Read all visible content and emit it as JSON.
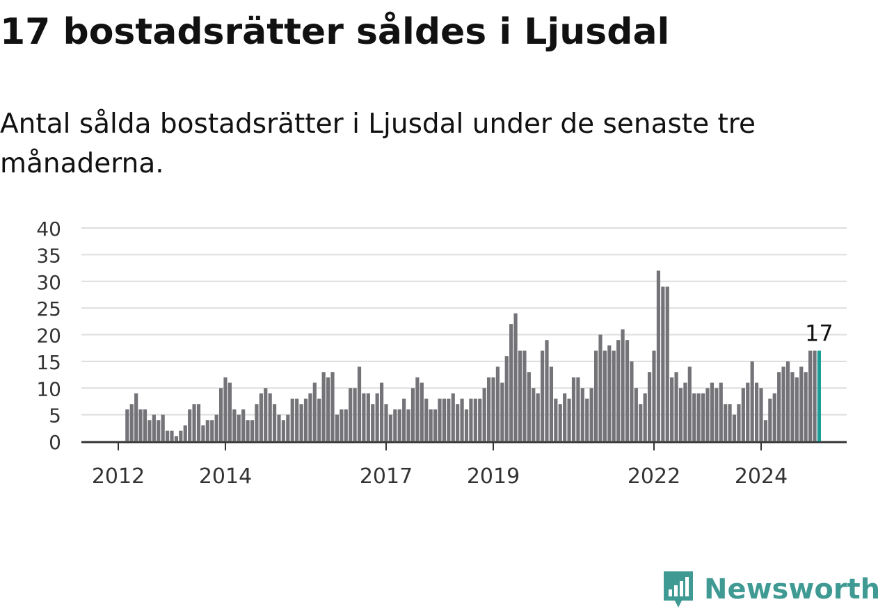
{
  "header": {
    "title": "17 bostadsrätter såldes i Ljusdal",
    "subtitle": "Antal sålda bostadsrätter i Ljusdal under de senaste tre månaderna."
  },
  "brand": {
    "name": "Newsworthy",
    "color": "#3f9a93"
  },
  "colors": {
    "bar": "#747378",
    "highlight": "#1a9e97",
    "grid": "#dddddd",
    "axis": "#333333",
    "text": "#333333"
  },
  "chart_data": {
    "type": "bar",
    "title": "",
    "xlabel": "",
    "ylabel": "",
    "ylim": [
      0,
      40
    ],
    "yticks": [
      "0",
      "5",
      "10",
      "15",
      "20",
      "25",
      "30",
      "35",
      "40"
    ],
    "xticks": [
      "2012",
      "2014",
      "2017",
      "2019",
      "2022",
      "2024"
    ],
    "start": "2012-03",
    "highlight_label": "17",
    "values": [
      6,
      7,
      9,
      6,
      6,
      4,
      5,
      4,
      5,
      2,
      2,
      1,
      2,
      3,
      6,
      7,
      7,
      3,
      4,
      4,
      5,
      10,
      12,
      11,
      6,
      5,
      6,
      4,
      4,
      7,
      9,
      10,
      9,
      7,
      5,
      4,
      5,
      8,
      8,
      7,
      8,
      9,
      11,
      8,
      13,
      12,
      13,
      5,
      6,
      6,
      10,
      10,
      14,
      9,
      9,
      7,
      9,
      11,
      7,
      5,
      6,
      6,
      8,
      6,
      10,
      12,
      11,
      8,
      6,
      6,
      8,
      8,
      8,
      9,
      7,
      8,
      6,
      8,
      8,
      8,
      10,
      12,
      12,
      14,
      11,
      16,
      22,
      24,
      17,
      17,
      13,
      10,
      9,
      17,
      19,
      14,
      8,
      7,
      9,
      8,
      12,
      12,
      10,
      8,
      10,
      17,
      20,
      17,
      18,
      17,
      19,
      21,
      19,
      15,
      10,
      7,
      9,
      13,
      17,
      32,
      29,
      29,
      12,
      13,
      10,
      11,
      14,
      9,
      9,
      9,
      10,
      11,
      10,
      11,
      7,
      7,
      5,
      7,
      10,
      11,
      15,
      11,
      10,
      4,
      8,
      9,
      13,
      14,
      15,
      13,
      12,
      14,
      13,
      17,
      17,
      17
    ]
  }
}
